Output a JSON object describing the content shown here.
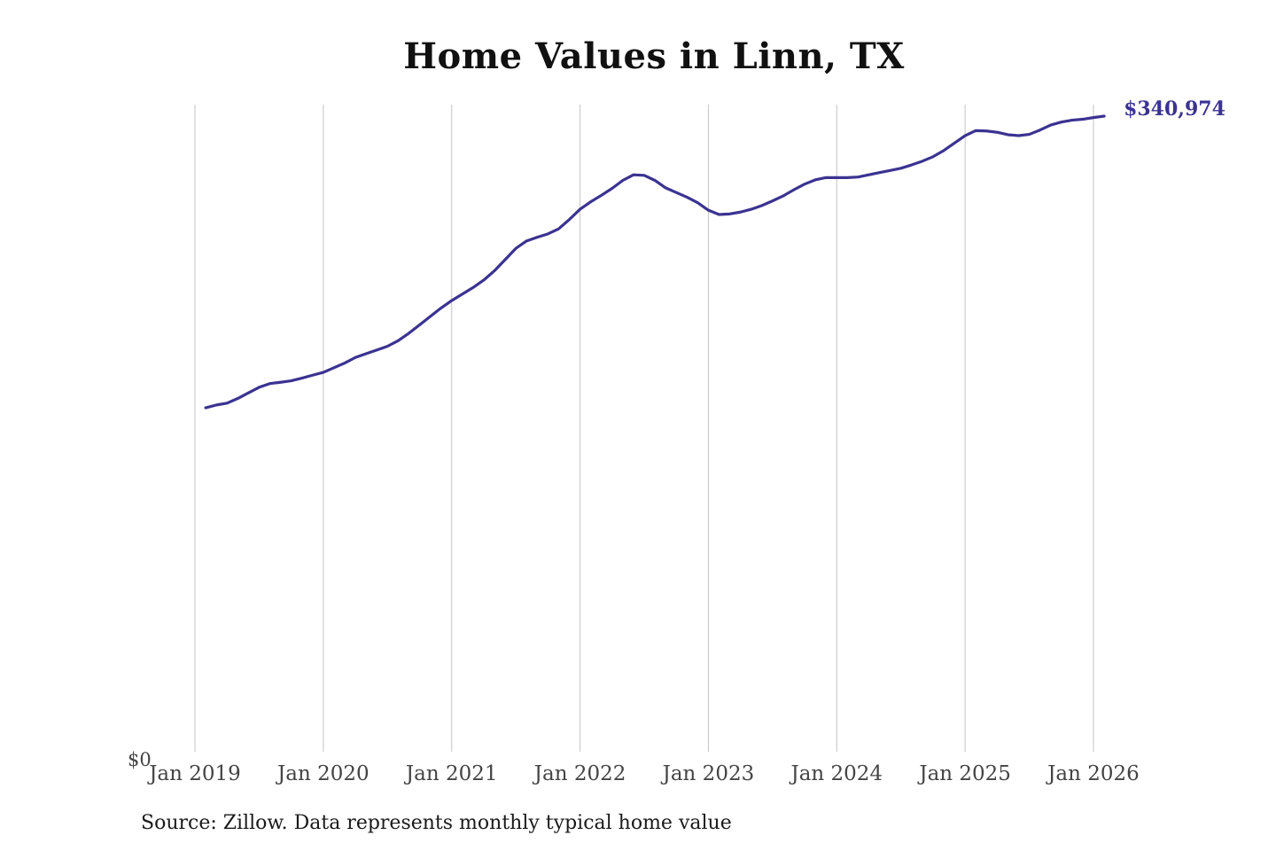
{
  "chart_data": {
    "type": "line",
    "title": "Home Values in Linn, TX",
    "source_note": "Source: Zillow. Data represents monthly typical home value",
    "y_min_label": "$0",
    "end_label": "$340,974",
    "ylim": [
      0,
      340974
    ],
    "grid": "vertical",
    "line_color": "#3b3391",
    "x_ticks": [
      {
        "date": "2019-01",
        "label": "Jan 2019"
      },
      {
        "date": "2020-01",
        "label": "Jan 2020"
      },
      {
        "date": "2021-01",
        "label": "Jan 2021"
      },
      {
        "date": "2022-01",
        "label": "Jan 2022"
      },
      {
        "date": "2023-01",
        "label": "Jan 2023"
      },
      {
        "date": "2024-01",
        "label": "Jan 2024"
      },
      {
        "date": "2025-01",
        "label": "Jan 2025"
      },
      {
        "date": "2026-01",
        "label": "Jan 2026"
      }
    ],
    "series": [
      {
        "x": [
          "2019-02",
          "2019-03",
          "2019-04",
          "2019-05",
          "2019-06",
          "2019-07",
          "2019-08",
          "2019-09",
          "2019-10",
          "2019-11",
          "2019-12",
          "2020-01",
          "2020-02",
          "2020-03",
          "2020-04",
          "2020-05",
          "2020-06",
          "2020-07",
          "2020-08",
          "2020-09",
          "2020-10",
          "2020-11",
          "2020-12",
          "2021-01",
          "2021-02",
          "2021-03",
          "2021-04",
          "2021-05",
          "2021-06",
          "2021-07",
          "2021-08",
          "2021-09",
          "2021-10",
          "2021-11",
          "2021-12",
          "2022-01",
          "2022-02",
          "2022-03",
          "2022-04",
          "2022-05",
          "2022-06",
          "2022-07",
          "2022-08",
          "2022-09",
          "2022-10",
          "2022-11",
          "2022-12",
          "2023-01",
          "2023-02",
          "2023-03",
          "2023-04",
          "2023-05",
          "2023-06",
          "2023-07",
          "2023-08",
          "2023-09",
          "2023-10",
          "2023-11",
          "2023-12",
          "2024-01",
          "2024-02",
          "2024-03",
          "2024-04",
          "2024-05",
          "2024-06",
          "2024-07",
          "2024-08",
          "2024-09",
          "2024-10",
          "2024-11",
          "2024-12",
          "2025-01",
          "2025-02",
          "2025-03",
          "2025-04",
          "2025-05",
          "2025-06",
          "2025-07",
          "2025-08",
          "2025-09",
          "2025-10",
          "2025-11",
          "2025-12",
          "2026-01",
          "2026-02"
        ],
        "values": [
          184500,
          186000,
          187000,
          189500,
          192500,
          195500,
          197500,
          198200,
          199000,
          200400,
          202000,
          203500,
          206000,
          208500,
          211500,
          213500,
          215500,
          217500,
          220500,
          224500,
          229000,
          233500,
          238000,
          242000,
          245500,
          249000,
          253000,
          258000,
          264000,
          270000,
          274000,
          276000,
          277800,
          280500,
          285500,
          291000,
          295000,
          298500,
          302200,
          306500,
          309500,
          309200,
          306500,
          302500,
          300000,
          297500,
          294500,
          290500,
          288200,
          288500,
          289500,
          291000,
          293000,
          295500,
          298200,
          301500,
          304500,
          306800,
          308000,
          308000,
          308000,
          308300,
          309500,
          310700,
          311800,
          313000,
          314800,
          316800,
          319200,
          322500,
          326500,
          330500,
          333200,
          333000,
          332300,
          331000,
          330500,
          331200,
          333500,
          336200,
          337800,
          338800,
          339300,
          340200,
          340974
        ]
      }
    ]
  }
}
